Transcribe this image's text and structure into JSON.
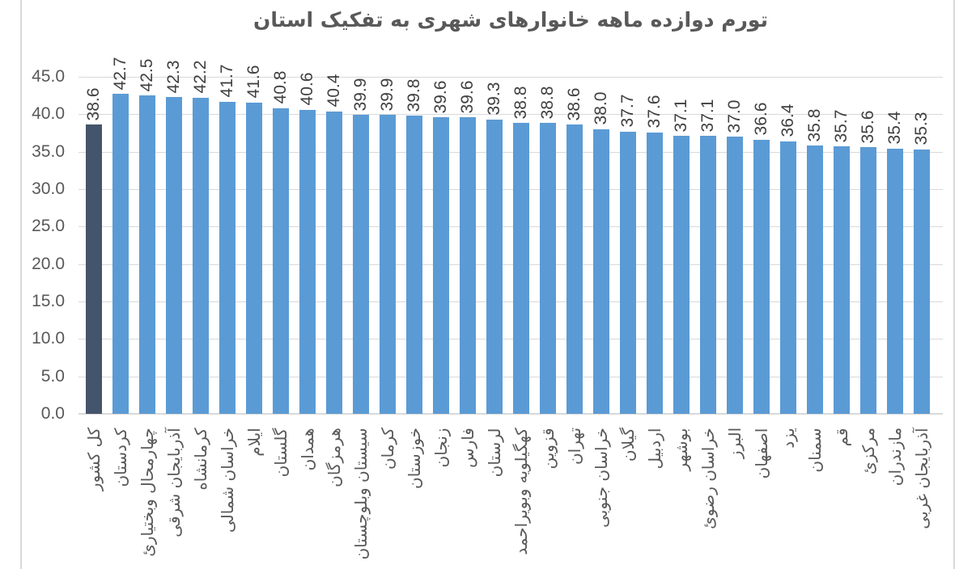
{
  "chart_data": {
    "type": "bar",
    "title": "تورم دوازده ماهه خانوارهای شهری به تفکیک استان",
    "categories": [
      "کل کشور",
      "کردستان",
      "چهارمحال وبختیاریٔ",
      "آذربایجان شرقی",
      "کرمانشاه",
      "خراسان شمالی",
      "ایلام",
      "گلستان",
      "همدان",
      "هرمزگان",
      "سیستان وبلوچستان",
      "کرمان",
      "خوزستان",
      "زنجان",
      "فارس",
      "لرستان",
      "کهگیلویه وبویراحمد",
      "قزوین",
      "تهران",
      "خراسان جنوبی",
      "گیلان",
      "اردبیل",
      "بوشهر",
      "خراسان رضویٔ",
      "البرز",
      "اصفهان",
      "یزد",
      "سمنان",
      "قم",
      "مرکزیٔ",
      "مازندران",
      "آذربایجان غربی"
    ],
    "values": [
      38.6,
      42.7,
      42.5,
      42.3,
      42.2,
      41.7,
      41.6,
      40.8,
      40.6,
      40.4,
      39.9,
      39.9,
      39.8,
      39.6,
      39.6,
      39.3,
      38.8,
      38.8,
      38.6,
      38.0,
      37.7,
      37.6,
      37.1,
      37.1,
      37.0,
      36.6,
      36.4,
      35.8,
      35.7,
      35.6,
      35.4,
      35.3
    ],
    "value_labels": [
      "38.6",
      "42.7",
      "42.5",
      "42.3",
      "42.2",
      "41.7",
      "41.6",
      "40.8",
      "40.6",
      "40.4",
      "39.9",
      "39.9",
      "39.8",
      "39.6",
      "39.6",
      "39.3",
      "38.8",
      "38.8",
      "38.6",
      "38.0",
      "37.7",
      "37.6",
      "37.1",
      "37.1",
      "37.0",
      "36.6",
      "36.4",
      "35.8",
      "35.7",
      "35.6",
      "35.4",
      "35.3"
    ],
    "highlight_index": 0,
    "ylim": [
      0,
      45
    ],
    "yticks": [
      0,
      5,
      10,
      15,
      20,
      25,
      30,
      35,
      40,
      45
    ],
    "ytick_labels": [
      "0.0",
      "5.0",
      "10.0",
      "15.0",
      "20.0",
      "25.0",
      "30.0",
      "35.0",
      "40.0",
      "45.0"
    ],
    "xlabel": "",
    "ylabel": "",
    "grid": true,
    "legend": null,
    "value_label_rotation_deg": 90,
    "category_label_rotation_deg": 90,
    "colors": {
      "bar": "#5B9BD5",
      "highlight_bar": "#44546A",
      "gridline": "#D9D9D9",
      "axis_labels": "#595959",
      "value_labels": "#404040",
      "title": "#595959",
      "frame_border": "#D9D9D9",
      "background": "#FFFFFF"
    }
  }
}
